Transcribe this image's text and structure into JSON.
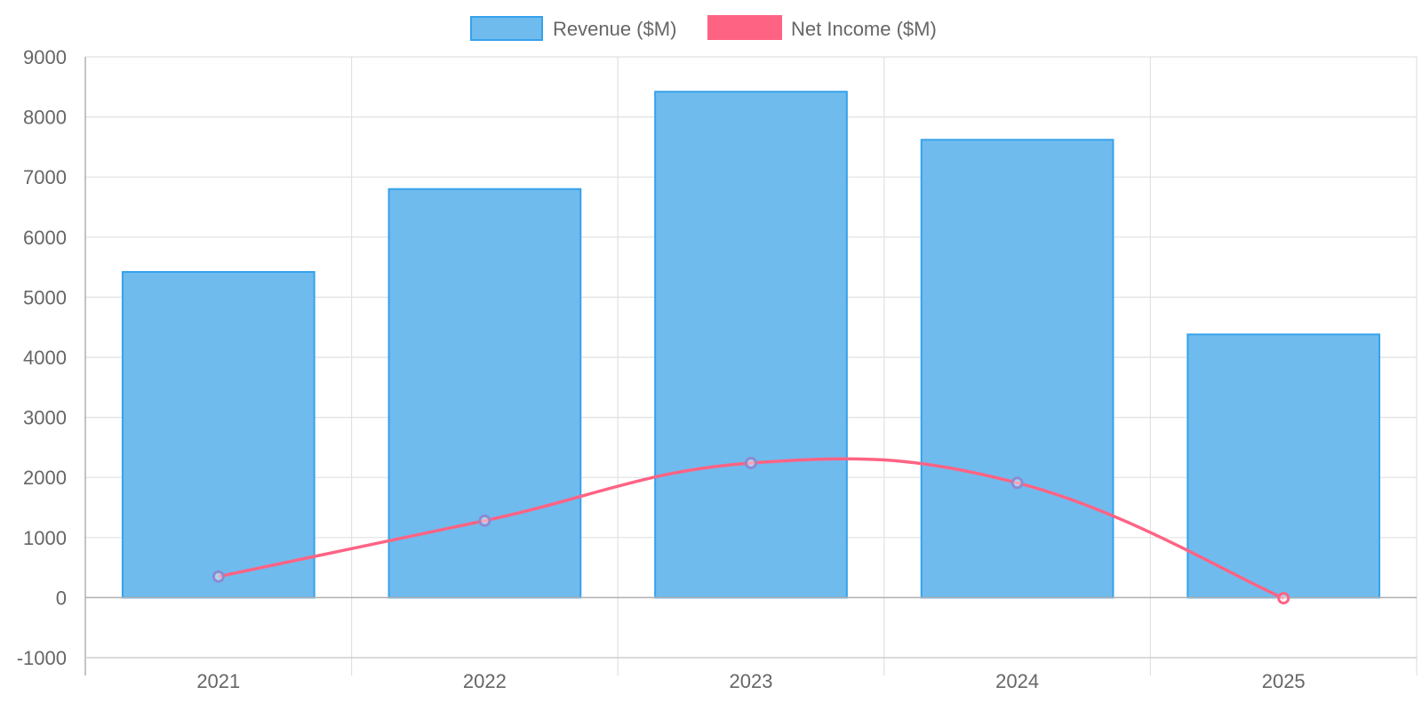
{
  "chart_data": {
    "type": "bar",
    "title": "",
    "xlabel": "",
    "ylabel": "",
    "categories": [
      "2021",
      "2022",
      "2023",
      "2024",
      "2025"
    ],
    "ylim": [
      -1000,
      9000
    ],
    "y_ticks": [
      -1000,
      0,
      1000,
      2000,
      3000,
      4000,
      5000,
      6000,
      7000,
      8000,
      9000
    ],
    "grid": true,
    "legend_position": "top-center",
    "series": [
      {
        "name": "Revenue ($M)",
        "type": "bar",
        "values": [
          5420,
          6800,
          8420,
          7620,
          4380
        ],
        "fill_color": "#6fbbee",
        "border_color": "#36a2eb"
      },
      {
        "name": "Net Income ($M)",
        "type": "line",
        "values": [
          350,
          1280,
          2240,
          1910,
          -10
        ],
        "line_color": "#ff6384",
        "point_color": "#8c8bd0",
        "smooth": true
      }
    ]
  }
}
